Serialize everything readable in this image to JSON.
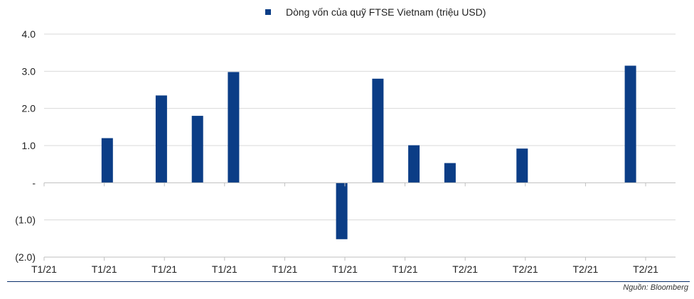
{
  "chart_data": {
    "type": "bar",
    "legend": "Dòng vốn của quỹ FTSE Vietnam (triệu USD)",
    "legend_position": "top-center",
    "series_color": "#0b3d86",
    "grid": true,
    "ylim": [
      -2.0,
      4.0
    ],
    "ytick_values": [
      4.0,
      3.0,
      2.0,
      1.0,
      0,
      -1.0,
      -2.0
    ],
    "ytick_labels": [
      "4.0",
      "3.0",
      "2.0",
      "1.0",
      "-",
      "(1.0)",
      "(2.0)"
    ],
    "xtick_labels": [
      "T1/21",
      "T1/21",
      "T1/21",
      "T1/21",
      "T1/21",
      "T1/21",
      "T1/21",
      "T2/21",
      "T2/21",
      "T2/21",
      "T2/21"
    ],
    "values": [
      0,
      0,
      0,
      1.2,
      0,
      0,
      2.35,
      0,
      1.8,
      0,
      2.98,
      0,
      0,
      0,
      0,
      0,
      -1.52,
      0,
      2.8,
      0,
      1.01,
      0,
      0.53,
      0,
      0,
      0,
      0.92,
      0,
      0,
      0,
      0,
      0,
      3.15,
      0,
      0
    ]
  },
  "source": "Nguồn: Bloomberg"
}
